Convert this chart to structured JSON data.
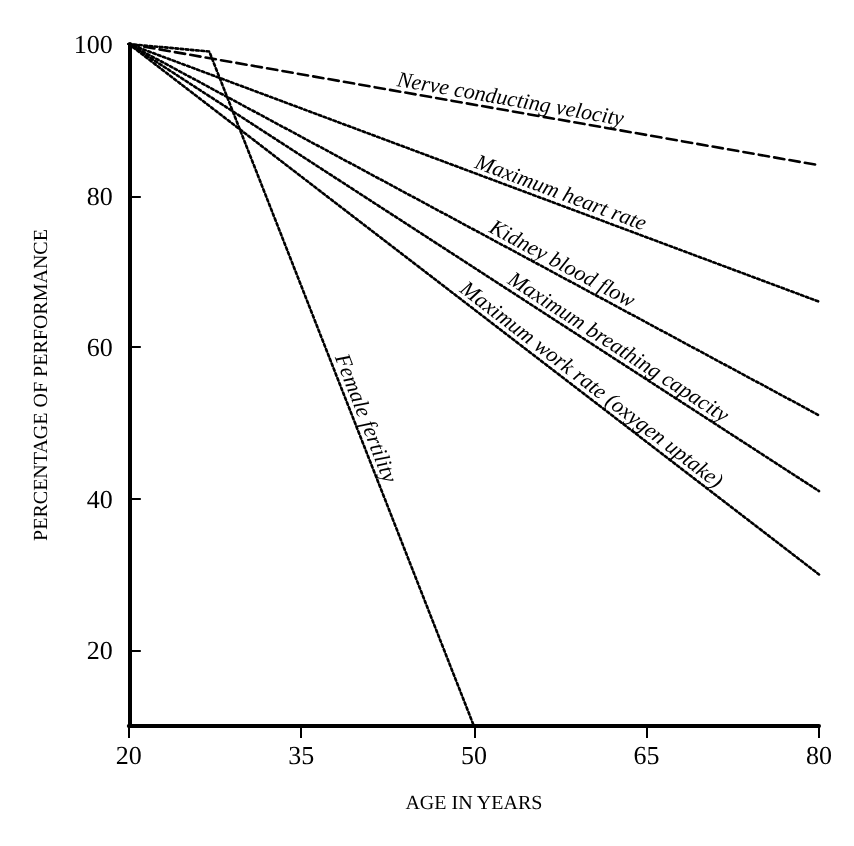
{
  "chart_data": {
    "type": "line",
    "xlabel": "AGE IN YEARS",
    "ylabel": "PERCENTAGE OF PERFORMANCE",
    "xlim": [
      20,
      80
    ],
    "ylim": [
      10,
      100
    ],
    "xticks": [
      20,
      35,
      50,
      65,
      80
    ],
    "yticks": [
      20,
      40,
      60,
      80,
      100
    ],
    "grid": false,
    "legend": false,
    "marker": "none",
    "line_style": "dotted",
    "series": [
      {
        "name": "Nerve conducting velocity",
        "color": "#000000",
        "x": [
          20,
          80
        ],
        "values": [
          100,
          84
        ],
        "line_style": "dashed"
      },
      {
        "name": "Maximum heart rate",
        "color": "#000000",
        "x": [
          20,
          80
        ],
        "values": [
          100,
          66
        ]
      },
      {
        "name": "Kidney blood flow",
        "color": "#000000",
        "x": [
          20,
          80
        ],
        "values": [
          100,
          51
        ]
      },
      {
        "name": "Maximum breathing capacity",
        "color": "#000000",
        "x": [
          20,
          80
        ],
        "values": [
          100,
          41
        ]
      },
      {
        "name": "Maximum work rate (oxygen uptake)",
        "color": "#000000",
        "x": [
          20,
          80
        ],
        "values": [
          100,
          30
        ]
      },
      {
        "name": "Female fertility",
        "color": "#000000",
        "x": [
          20,
          27,
          50
        ],
        "values": [
          100,
          99,
          10
        ]
      }
    ]
  }
}
